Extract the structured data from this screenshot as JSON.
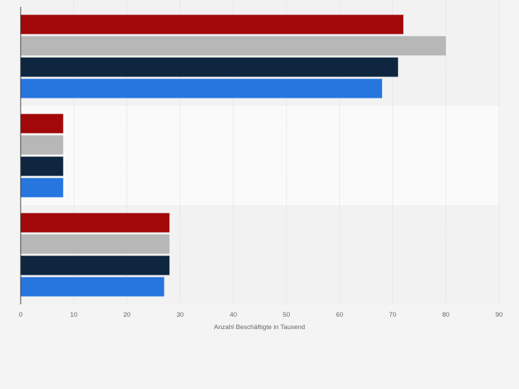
{
  "chart_data": {
    "type": "bar",
    "orientation": "horizontal",
    "title": "",
    "xlabel": "Anzahl Beschäftigte in Tausend",
    "ylabel": "",
    "xlim": [
      0,
      90
    ],
    "x_ticks": [
      "0",
      "10",
      "20",
      "30",
      "40",
      "50",
      "60",
      "70",
      "80",
      "90"
    ],
    "grid": true,
    "legend": "none",
    "categories": [
      "",
      "",
      ""
    ],
    "series": [
      {
        "color": "#a30809",
        "values": [
          72,
          8,
          28
        ]
      },
      {
        "color": "#b7b7b7",
        "values": [
          80,
          8,
          28
        ]
      },
      {
        "color": "#0f2640",
        "values": [
          71,
          8,
          28
        ]
      },
      {
        "color": "#2776e0",
        "values": [
          68,
          8,
          27
        ]
      }
    ]
  }
}
